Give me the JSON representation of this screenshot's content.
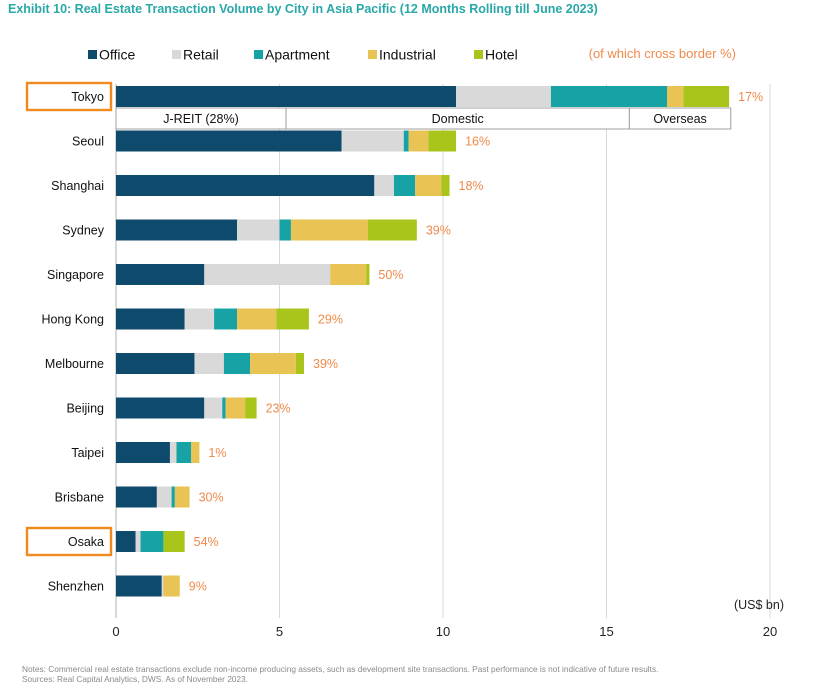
{
  "title": "Exhibit 10: Real Estate Transaction Volume by City in Asia Pacific (12 Months Rolling till June 2023)",
  "notes": "Notes: Commercial real estate transactions exclude non-income producing assets, such as development site transactions. Past performance is not indicative of future results.",
  "sources": "Sources: Real Capital Analytics, DWS. As of November 2023.",
  "colors": {
    "Office": "#0d4a6c",
    "Retail": "#d9d9d9",
    "Apartment": "#17a2a6",
    "Industrial": "#e9c353",
    "Hotel": "#a9c51c",
    "cross_border_text": "#f08a4b",
    "highlight_box": "#f08a1e"
  },
  "chart_data": {
    "type": "bar",
    "orientation": "horizontal",
    "stacked": true,
    "xlabel": "(US$ bn)",
    "ylabel": "",
    "xlim": [
      0,
      20
    ],
    "xticks": [
      0,
      5,
      10,
      15,
      20
    ],
    "grid": "vertical",
    "legend_position": "top",
    "cross_border_label": "(of which cross border %)",
    "categories": [
      "Tokyo",
      "Seoul",
      "Shanghai",
      "Sydney",
      "Singapore",
      "Hong Kong",
      "Melbourne",
      "Beijing",
      "Taipei",
      "Brisbane",
      "Osaka",
      "Shenzhen"
    ],
    "highlighted": [
      "Tokyo",
      "Osaka"
    ],
    "series": [
      {
        "name": "Office",
        "values": [
          10.4,
          6.9,
          7.9,
          3.7,
          2.7,
          2.1,
          2.4,
          2.7,
          1.65,
          1.25,
          0.6,
          1.4
        ]
      },
      {
        "name": "Retail",
        "values": [
          2.9,
          1.9,
          0.6,
          1.3,
          3.85,
          0.9,
          0.9,
          0.55,
          0.2,
          0.45,
          0.15,
          0.05
        ]
      },
      {
        "name": "Apartment",
        "values": [
          3.55,
          0.15,
          0.65,
          0.35,
          0,
          0.7,
          0.8,
          0.1,
          0.45,
          0.1,
          0.7,
          0
        ]
      },
      {
        "name": "Industrial",
        "values": [
          0.5,
          0.6,
          0.8,
          2.35,
          1.1,
          1.2,
          1.4,
          0.6,
          0.25,
          0.45,
          0,
          0.5
        ]
      },
      {
        "name": "Hotel",
        "values": [
          1.4,
          0.85,
          0.25,
          1.5,
          0.1,
          1.0,
          0.25,
          0.35,
          0,
          0,
          0.65,
          0
        ]
      }
    ],
    "cross_border": [
      "17%",
      "16%",
      "18%",
      "39%",
      "50%",
      "29%",
      "39%",
      "23%",
      "1%",
      "30%",
      "54%",
      "9%"
    ],
    "tokyo_breakdown": [
      {
        "label": "J-REIT  (28%)",
        "start": 0,
        "end": 5.2
      },
      {
        "label": "Domestic",
        "start": 5.2,
        "end": 15.7
      },
      {
        "label": "Overseas",
        "start": 15.7,
        "end": 18.8
      }
    ]
  }
}
